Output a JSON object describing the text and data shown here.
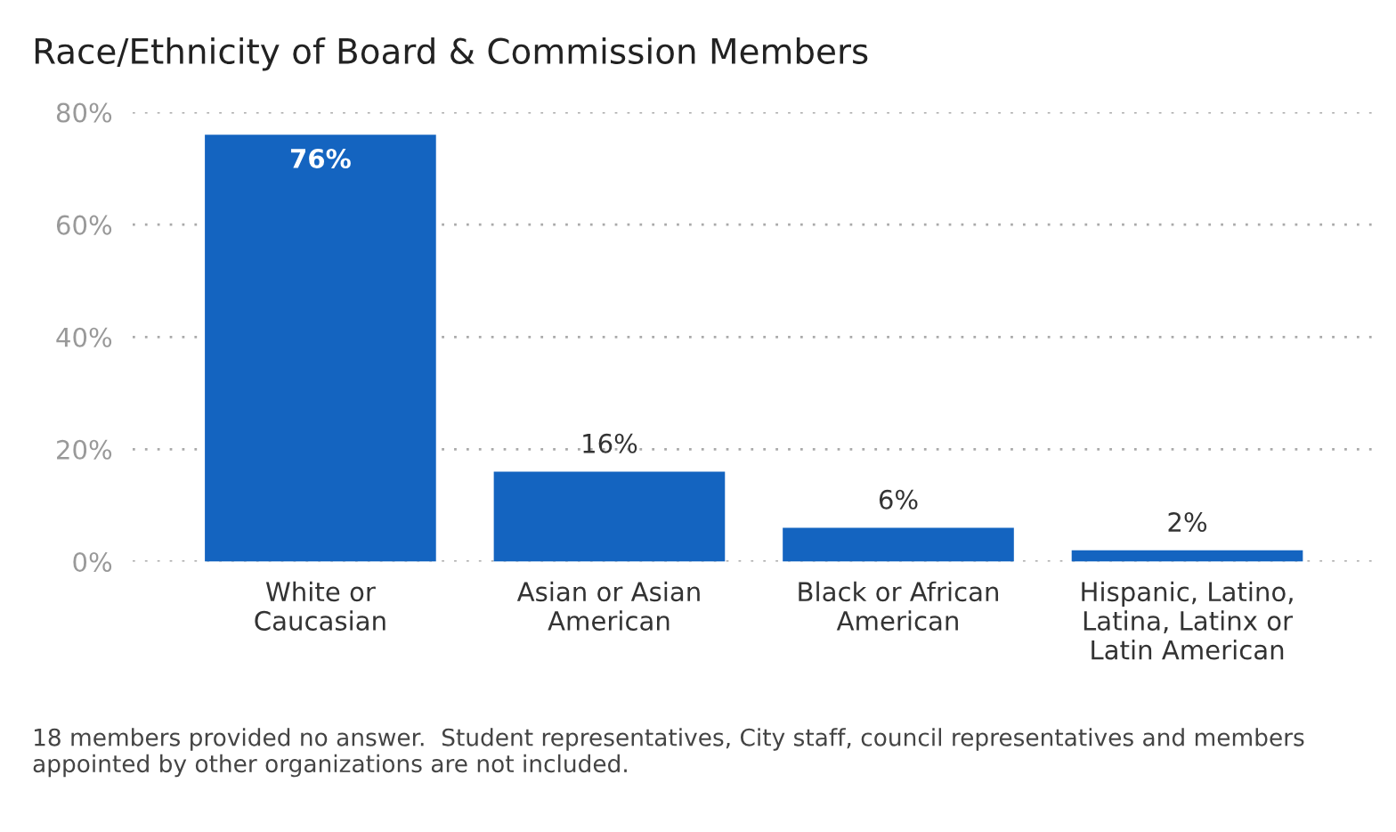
{
  "chart_data": {
    "type": "bar",
    "title": "Race/Ethnicity of Board & Commission Members",
    "categories": [
      "White or\nCaucasian",
      "Asian or Asian\nAmerican",
      "Black or African\nAmerican",
      "Hispanic, Latino,\nLatina, Latinx or\nLatin American"
    ],
    "values": [
      76,
      16,
      6,
      2
    ],
    "value_labels": [
      "76%",
      "16%",
      "6%",
      "2%"
    ],
    "color": "#1464c0",
    "ylim": [
      0,
      80
    ],
    "yticks": [
      {
        "value": 0,
        "label": "0%"
      },
      {
        "value": 20,
        "label": "20%"
      },
      {
        "value": 40,
        "label": "40%"
      },
      {
        "value": 60,
        "label": "60%"
      },
      {
        "value": 80,
        "label": "80%"
      }
    ],
    "grid": "y",
    "annotations": [
      "18 members provided no answer.  Student representatives, City staff, council representatives and members appointed by other organizations are not included."
    ]
  }
}
